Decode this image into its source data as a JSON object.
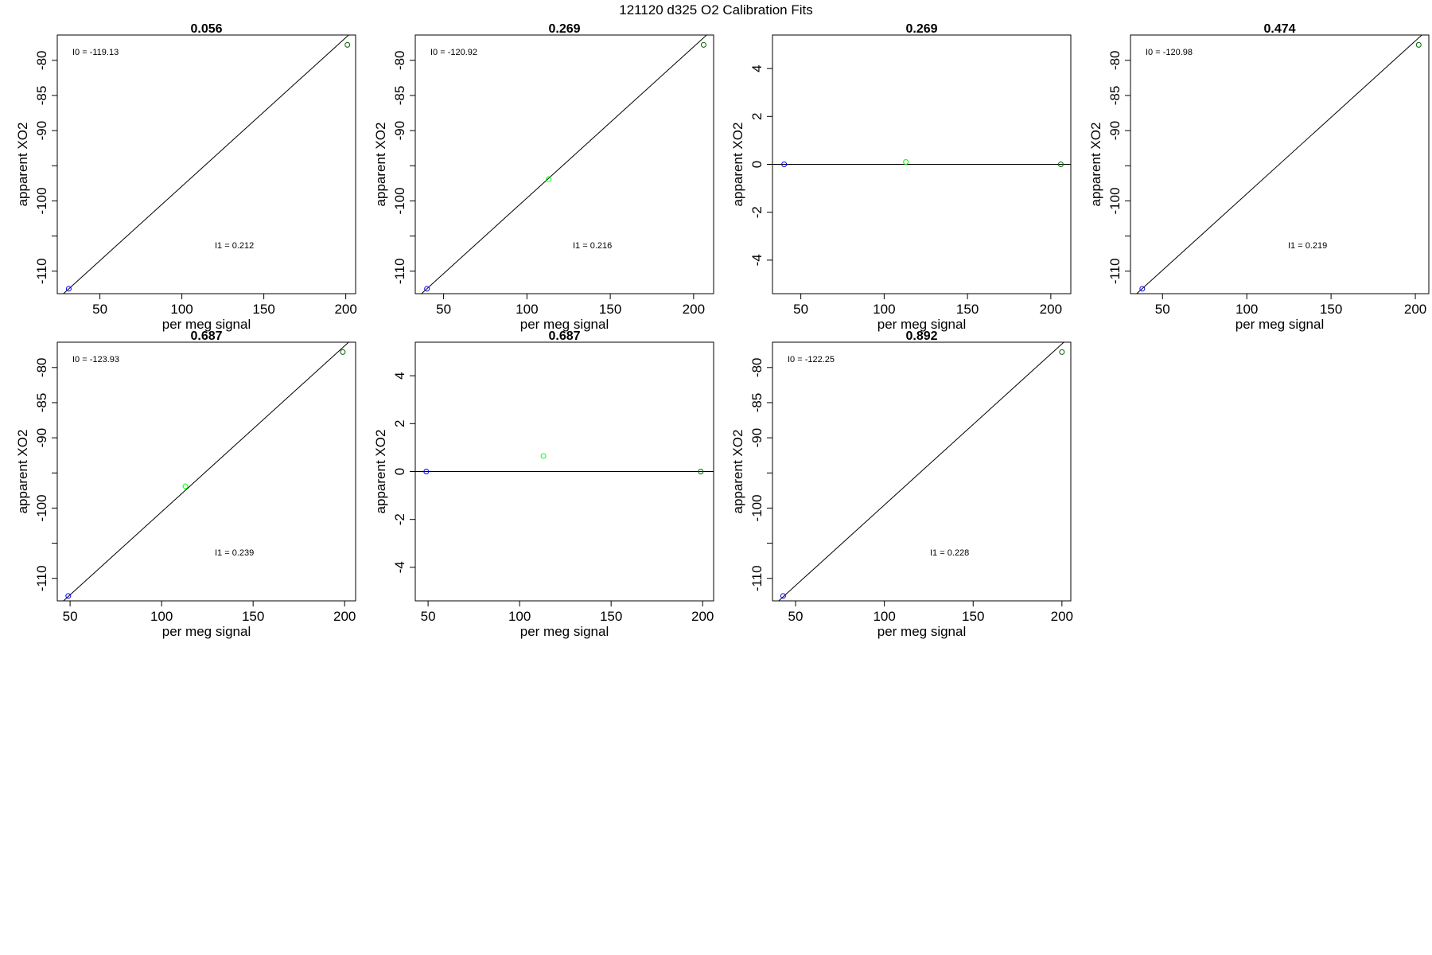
{
  "figure_title": "121120   d325   O2 Calibration Fits",
  "colors": {
    "blue_point": "#0000ff",
    "green_point": "#00ff00",
    "dark_point": "#006400",
    "line": "#000000"
  },
  "chart_data": [
    {
      "type": "scatter",
      "title": "0.056",
      "xlabel": "per meg signal",
      "ylabel": "apparent XO2",
      "xlim": [
        24,
        206
      ],
      "ylim": [
        -113.2,
        -76.4
      ],
      "xticks": [
        50,
        100,
        150,
        200
      ],
      "yticks": [
        -110,
        -100,
        -90,
        -85,
        -80
      ],
      "ytick_labels": [
        "-110",
        "-100",
        "-90",
        "-85",
        "-80"
      ],
      "yminor": [
        -105,
        -95
      ],
      "points": [
        {
          "x": 31,
          "y": -112.5,
          "color": "blue"
        },
        {
          "x": 201,
          "y": -77.8,
          "color": "dark"
        }
      ],
      "fit_line": [
        [
          24,
          -114.0
        ],
        [
          206,
          -75.5
        ]
      ],
      "annotations": {
        "i0": "I0 =  -119.13",
        "i1": "I1 =  0.212"
      }
    },
    {
      "type": "scatter",
      "title": "0.269",
      "xlabel": "per meg signal",
      "ylabel": "apparent XO2",
      "xlim": [
        33,
        212
      ],
      "ylim": [
        -113.2,
        -76.4
      ],
      "xticks": [
        50,
        100,
        150,
        200
      ],
      "yticks": [
        -110,
        -100,
        -90,
        -85,
        -80
      ],
      "ytick_labels": [
        "-110",
        "-100",
        "-90",
        "-85",
        "-80"
      ],
      "yminor": [
        -105,
        -95
      ],
      "points": [
        {
          "x": 40,
          "y": -112.5,
          "color": "blue"
        },
        {
          "x": 113,
          "y": -96.9,
          "color": "green"
        },
        {
          "x": 206,
          "y": -77.8,
          "color": "dark"
        }
      ],
      "fit_line": [
        [
          33,
          -114.0
        ],
        [
          212,
          -75.5
        ]
      ],
      "annotations": {
        "i0": "I0 =  -120.92",
        "i1": "I1 =  0.216"
      }
    },
    {
      "type": "scatter",
      "title": "0.269",
      "xlabel": "per meg signal",
      "ylabel": "apparent XO2",
      "xlim": [
        33,
        212
      ],
      "ylim": [
        -5.4,
        5.4
      ],
      "xticks": [
        50,
        100,
        150,
        200
      ],
      "yticks": [
        -4,
        -2,
        0,
        2,
        4
      ],
      "ytick_labels": [
        "-4",
        "-2",
        "0",
        "2",
        "4"
      ],
      "yminor": [],
      "points": [
        {
          "x": 40,
          "y": 0,
          "color": "blue"
        },
        {
          "x": 113,
          "y": 0.1,
          "color": "green"
        },
        {
          "x": 206,
          "y": 0,
          "color": "dark"
        }
      ],
      "fit_line": [
        [
          33,
          0
        ],
        [
          212,
          0
        ]
      ],
      "annotations": {
        "i0": "",
        "i1": ""
      }
    },
    {
      "type": "scatter",
      "title": "0.474",
      "xlabel": "per meg signal",
      "ylabel": "apparent XO2",
      "xlim": [
        31,
        208
      ],
      "ylim": [
        -113.2,
        -76.4
      ],
      "xticks": [
        50,
        100,
        150,
        200
      ],
      "yticks": [
        -110,
        -100,
        -90,
        -85,
        -80
      ],
      "ytick_labels": [
        "-110",
        "-100",
        "-90",
        "-85",
        "-80"
      ],
      "yminor": [
        -105,
        -95
      ],
      "points": [
        {
          "x": 38,
          "y": -112.5,
          "color": "blue"
        },
        {
          "x": 202,
          "y": -77.8,
          "color": "dark"
        }
      ],
      "fit_line": [
        [
          31,
          -114.0
        ],
        [
          208,
          -75.5
        ]
      ],
      "annotations": {
        "i0": "I0 =  -120.98",
        "i1": "I1 =  0.219"
      }
    },
    {
      "type": "scatter",
      "title": "0.687",
      "xlabel": "per meg signal",
      "ylabel": "apparent XO2",
      "xlim": [
        43,
        206
      ],
      "ylim": [
        -113.2,
        -76.4
      ],
      "xticks": [
        50,
        100,
        150,
        200
      ],
      "yticks": [
        -110,
        -100,
        -90,
        -85,
        -80
      ],
      "ytick_labels": [
        "-110",
        "-100",
        "-90",
        "-85",
        "-80"
      ],
      "yminor": [
        -105,
        -95
      ],
      "points": [
        {
          "x": 49,
          "y": -112.5,
          "color": "blue"
        },
        {
          "x": 113,
          "y": -96.9,
          "color": "green"
        },
        {
          "x": 199,
          "y": -77.8,
          "color": "dark"
        }
      ],
      "fit_line": [
        [
          43,
          -114.0
        ],
        [
          206,
          -75.5
        ]
      ],
      "annotations": {
        "i0": "I0 =  -123.93",
        "i1": "I1 =  0.239"
      }
    },
    {
      "type": "scatter",
      "title": "0.687",
      "xlabel": "per meg signal",
      "ylabel": "apparent XO2",
      "xlim": [
        43,
        206
      ],
      "ylim": [
        -5.4,
        5.4
      ],
      "xticks": [
        50,
        100,
        150,
        200
      ],
      "yticks": [
        -4,
        -2,
        0,
        2,
        4
      ],
      "ytick_labels": [
        "-4",
        "-2",
        "0",
        "2",
        "4"
      ],
      "yminor": [],
      "points": [
        {
          "x": 49,
          "y": 0,
          "color": "blue"
        },
        {
          "x": 113,
          "y": 0.65,
          "color": "green"
        },
        {
          "x": 199,
          "y": 0,
          "color": "dark"
        }
      ],
      "fit_line": [
        [
          43,
          0
        ],
        [
          206,
          0
        ]
      ],
      "annotations": {
        "i0": "",
        "i1": ""
      }
    },
    {
      "type": "scatter",
      "title": "0.892",
      "xlabel": "per meg signal",
      "ylabel": "apparent XO2",
      "xlim": [
        37,
        205
      ],
      "ylim": [
        -113.2,
        -76.4
      ],
      "xticks": [
        50,
        100,
        150,
        200
      ],
      "yticks": [
        -110,
        -100,
        -90,
        -85,
        -80
      ],
      "ytick_labels": [
        "-110",
        "-100",
        "-90",
        "-85",
        "-80"
      ],
      "yminor": [
        -105,
        -95
      ],
      "points": [
        {
          "x": 43,
          "y": -112.5,
          "color": "blue"
        },
        {
          "x": 200,
          "y": -77.8,
          "color": "dark"
        }
      ],
      "fit_line": [
        [
          37,
          -114.0
        ],
        [
          205,
          -75.5
        ]
      ],
      "annotations": {
        "i0": "I0 =  -122.25",
        "i1": "I1 =  0.228"
      }
    }
  ]
}
